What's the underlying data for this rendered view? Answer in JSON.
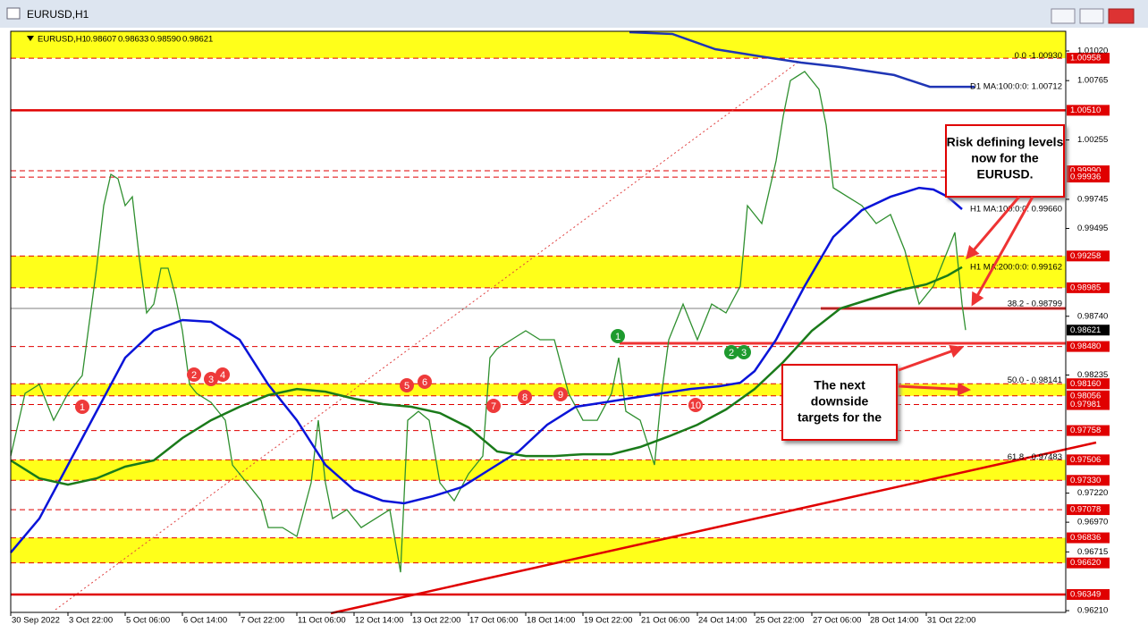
{
  "chart_data": {
    "type": "line",
    "window_title": "EURUSD,H1",
    "symbol": "EURUSD,H1",
    "ohlc": [
      "0.98607",
      "0.98633",
      "0.98590",
      "0.98621"
    ],
    "xlim": [
      0,
      590
    ],
    "xticks": [
      {
        "value": 0,
        "label": "30 Sep 2022"
      },
      {
        "value": 32,
        "label": "3 Oct 22:00"
      },
      {
        "value": 64,
        "label": "5 Oct 06:00"
      },
      {
        "value": 96,
        "label": "6 Oct 14:00"
      },
      {
        "value": 128,
        "label": "7 Oct 22:00"
      },
      {
        "value": 160,
        "label": "11 Oct 06:00"
      },
      {
        "value": 192,
        "label": "12 Oct 14:00"
      },
      {
        "value": 224,
        "label": "13 Oct 22:00"
      },
      {
        "value": 256,
        "label": "17 Oct 06:00"
      },
      {
        "value": 288,
        "label": "18 Oct 14:00"
      },
      {
        "value": 320,
        "label": "19 Oct 22:00"
      },
      {
        "value": 352,
        "label": "21 Oct 06:00"
      },
      {
        "value": 384,
        "label": "24 Oct 14:00"
      },
      {
        "value": 416,
        "label": "25 Oct 22:00"
      },
      {
        "value": 448,
        "label": "27 Oct 06:00"
      },
      {
        "value": 480,
        "label": "28 Oct 14:00"
      },
      {
        "value": 512,
        "label": "31 Oct 22:00"
      }
    ],
    "ylim": [
      0.96195,
      1.01189
    ],
    "yticks": [
      {
        "value": 1.0102,
        "label": "1.01020"
      },
      {
        "value": 1.00765,
        "label": "1.00765"
      },
      {
        "value": 1.00255,
        "label": "1.00255"
      },
      {
        "value": 0.99745,
        "label": "0.99745"
      },
      {
        "value": 0.99495,
        "label": "0.99495"
      },
      {
        "value": 0.9874,
        "label": "0.98740"
      },
      {
        "value": 0.98235,
        "label": "0.98235"
      },
      {
        "value": 0.9722,
        "label": "0.97220"
      },
      {
        "value": 0.9697,
        "label": "0.96970"
      },
      {
        "value": 0.96715,
        "label": "0.96715"
      },
      {
        "value": 0.9621,
        "label": "0.96210"
      }
    ],
    "zones": [
      [
        1.01189,
        1.00958
      ],
      [
        0.99258,
        0.98985
      ],
      [
        0.9816,
        0.98056
      ],
      [
        0.97506,
        0.9733
      ],
      [
        0.96836,
        0.9662
      ]
    ],
    "zone_color": "#ffff1a",
    "level_color": "#e00000",
    "levels": [
      {
        "value": 1.00958,
        "label": "1.00958",
        "style": "dashed"
      },
      {
        "value": 1.0051,
        "label": "1.00510",
        "style": "solid"
      },
      {
        "value": 0.9999,
        "label": "0.99990",
        "style": "dashed"
      },
      {
        "value": 0.99936,
        "label": "0.99936",
        "style": "dashed"
      },
      {
        "value": 0.99258,
        "label": "0.99258",
        "style": "dashed"
      },
      {
        "value": 0.98985,
        "label": "0.98985",
        "style": "dashed"
      },
      {
        "value": 0.9848,
        "label": "0.98480",
        "style": "dashed"
      },
      {
        "value": 0.9816,
        "label": "0.98160",
        "style": "dashed"
      },
      {
        "value": 0.98056,
        "label": "0.98056",
        "style": "dashed"
      },
      {
        "value": 0.97981,
        "label": "0.97981",
        "style": "dashed"
      },
      {
        "value": 0.97758,
        "label": "0.97758",
        "style": "dashed"
      },
      {
        "value": 0.97506,
        "label": "0.97506",
        "style": "dashed"
      },
      {
        "value": 0.9733,
        "label": "0.97330",
        "style": "dashed"
      },
      {
        "value": 0.97078,
        "label": "0.97078",
        "style": "dashed"
      },
      {
        "value": 0.96836,
        "label": "0.96836",
        "style": "dashed"
      },
      {
        "value": 0.9662,
        "label": "0.96620",
        "style": "dashed"
      },
      {
        "value": 0.96349,
        "label": "0.96349",
        "style": "solid"
      }
    ],
    "last_price": {
      "value": 0.98621,
      "label": "0.98621"
    },
    "fib_levels": [
      {
        "value": 1.0093,
        "label": "0.0 -1.00930"
      },
      {
        "value": 0.98799,
        "label": "38.2 - 0.98799"
      },
      {
        "value": 0.98141,
        "label": "50.0 - 0.98141"
      },
      {
        "value": 0.97483,
        "label": "61.8 - 0.97483"
      }
    ],
    "price": {
      "color": "#2f8f2f",
      "x": [
        0,
        8,
        16,
        24,
        32,
        40,
        44,
        48,
        52,
        56,
        60,
        64,
        68,
        72,
        76,
        80,
        84,
        88,
        92,
        96,
        100,
        104,
        112,
        120,
        124,
        132,
        140,
        144,
        152,
        160,
        168,
        172,
        176,
        180,
        188,
        196,
        204,
        212,
        218,
        222,
        228,
        234,
        240,
        248,
        256,
        264,
        268,
        272,
        280,
        288,
        296,
        304,
        312,
        320,
        328,
        336,
        340,
        344,
        352,
        360,
        364,
        368,
        376,
        384,
        392,
        400,
        408,
        412,
        420,
        428,
        432,
        436,
        444,
        452,
        456,
        460,
        468,
        476,
        484,
        492,
        500,
        508,
        516,
        524,
        528,
        532,
        534
      ],
      "values": [
        0.97539,
        0.98077,
        0.98154,
        0.97846,
        0.98077,
        0.98231,
        0.98692,
        0.99153,
        0.99691,
        0.9996,
        0.99921,
        0.99691,
        0.99767,
        0.9923,
        0.98769,
        0.98845,
        0.99153,
        0.99153,
        0.98922,
        0.98615,
        0.98154,
        0.98077,
        0.98,
        0.97846,
        0.97462,
        0.97309,
        0.97155,
        0.96924,
        0.96924,
        0.96848,
        0.97309,
        0.97846,
        0.97309,
        0.97001,
        0.97078,
        0.96924,
        0.97001,
        0.97078,
        0.9654,
        0.97846,
        0.97923,
        0.97846,
        0.97309,
        0.97155,
        0.97385,
        0.97539,
        0.98384,
        0.98461,
        0.98538,
        0.98615,
        0.98538,
        0.98538,
        0.98077,
        0.97846,
        0.97846,
        0.98077,
        0.98384,
        0.97923,
        0.97846,
        0.97462,
        0.98077,
        0.98538,
        0.98845,
        0.98538,
        0.98845,
        0.98769,
        0.98999,
        0.99691,
        0.99537,
        1.00075,
        1.00459,
        1.00766,
        1.00843,
        1.0069,
        1.00382,
        0.99844,
        0.99767,
        0.99691,
        0.99537,
        0.99614,
        0.99306,
        0.98845,
        0.98999,
        0.99306,
        0.9946,
        0.98845,
        0.98621
      ]
    },
    "series": [
      {
        "name": "D1 MA:100:0:0: 1.00712",
        "color": "#1f35b5",
        "x": [
          346,
          370,
          394,
          419,
          442,
          464,
          494,
          514,
          539
        ],
        "values": [
          1.01181,
          1.01166,
          1.01035,
          1.00974,
          1.0092,
          1.00882,
          1.00813,
          1.00712,
          1.00712
        ]
      },
      {
        "name": "H1 MA:100:0:0: 0.99660",
        "color": "#0a14d8",
        "x": [
          0,
          16,
          32,
          48,
          64,
          80,
          96,
          112,
          128,
          144,
          160,
          176,
          192,
          208,
          220,
          236,
          252,
          268,
          284,
          300,
          316,
          332,
          348,
          364,
          380,
          396,
          408,
          416,
          428,
          444,
          460,
          476,
          492,
          508,
          516,
          524,
          532
        ],
        "values": [
          0.96709,
          0.97001,
          0.97462,
          0.97923,
          0.98384,
          0.98615,
          0.98707,
          0.98692,
          0.98538,
          0.98154,
          0.97846,
          0.97462,
          0.97247,
          0.97155,
          0.97132,
          0.97193,
          0.9727,
          0.97424,
          0.97578,
          0.97808,
          0.97962,
          0.98,
          0.98039,
          0.98077,
          0.98115,
          0.98138,
          0.98169,
          0.98269,
          0.98538,
          0.98999,
          0.99422,
          0.99652,
          0.99767,
          0.99844,
          0.99829,
          0.99767,
          0.9966
        ]
      },
      {
        "name": "H1 MA:200:0:0: 0.99162",
        "color": "#1a7a1a",
        "x": [
          0,
          16,
          32,
          48,
          64,
          80,
          96,
          112,
          128,
          144,
          160,
          176,
          192,
          208,
          224,
          240,
          256,
          272,
          288,
          304,
          320,
          336,
          352,
          368,
          384,
          400,
          416,
          432,
          448,
          464,
          480,
          496,
          512,
          524,
          532
        ],
        "values": [
          0.97501,
          0.97347,
          0.97293,
          0.97347,
          0.97447,
          0.97501,
          0.97693,
          0.97846,
          0.97962,
          0.98062,
          0.98115,
          0.98092,
          0.98031,
          0.97985,
          0.97962,
          0.97908,
          0.97785,
          0.97578,
          0.97539,
          0.97539,
          0.97554,
          0.97554,
          0.97616,
          0.97708,
          0.97808,
          0.97939,
          0.98115,
          0.98346,
          0.98615,
          0.98807,
          0.98884,
          0.98961,
          0.99014,
          0.99091,
          0.99162
        ]
      }
    ],
    "markers": {
      "red": [
        "1",
        "2",
        "3",
        "4",
        "5",
        "6",
        "7",
        "8",
        "9",
        "10"
      ],
      "green": [
        "1",
        "2",
        "3"
      ]
    },
    "annotations": [
      {
        "lines": [
          "Risk defining levels",
          "now for the",
          "EURUSD."
        ]
      },
      {
        "lines": [
          "The next",
          "downside",
          "targets for the"
        ]
      }
    ]
  }
}
